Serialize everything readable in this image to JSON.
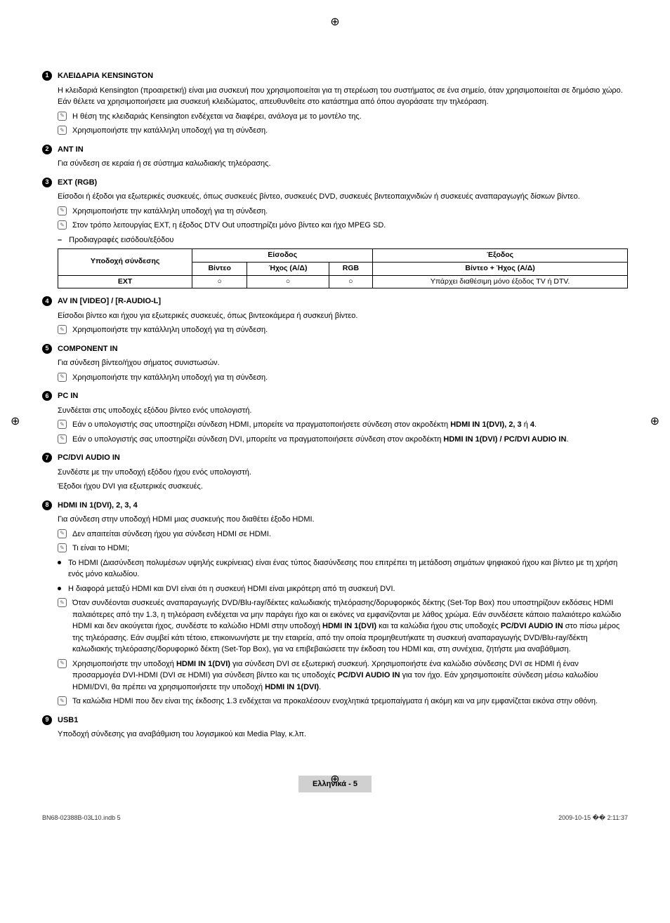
{
  "sections": [
    {
      "num": "1",
      "title": "ΚΛΕΙΔΑΡΙΑ KENSINGTON",
      "intro": "Η κλειδαριά Kensington (προαιρετική) είναι μια συσκευή που χρησιμοποιείται για τη στερέωση του συστήματος σε ένα σημείο, όταν χρησιμοποιείται σε δημόσιο χώρο. Εάν θέλετε να χρησιμοποιήσετε μια συσκευή κλειδώματος, απευθυνθείτε στο κατάστημα από όπου αγοράσατε την τηλεόραση.",
      "notes": [
        "Η θέση της κλειδαριάς Kensington ενδέχεται να διαφέρει, ανάλογα με το μοντέλο της.",
        "Χρησιμοποιήστε την κατάλληλη υποδοχή για τη σύνδεση."
      ]
    },
    {
      "num": "2",
      "title": "ANT IN",
      "intro": "Για σύνδεση σε κεραία ή σε σύστημα καλωδιακής τηλεόρασης."
    },
    {
      "num": "3",
      "title": "EXT (RGB)",
      "intro": "Είσοδοι ή έξοδοι για εξωτερικές συσκευές, όπως συσκευές βίντεο, συσκευές DVD, συσκευές βιντεοπαιχνιδιών ή συσκευές αναπαραγωγής δίσκων βίντεο.",
      "notes": [
        "Χρησιμοποιήστε την κατάλληλη υποδοχή για τη σύνδεση.",
        "Στον τρόπο λειτουργίας EXT, η έξοδος DTV Out υποστηρίζει μόνο βίντεο και ήχο MPEG SD."
      ],
      "dash": "Προδιαγραφές εισόδου/εξόδου"
    },
    {
      "num": "4",
      "title": "AV IN [VIDEO] / [R-AUDIO-L]",
      "intro": "Είσοδοι βίντεο και ήχου για εξωτερικές συσκευές, όπως βιντεοκάμερα ή συσκευή βίντεο.",
      "notes": [
        "Χρησιμοποιήστε την κατάλληλη υποδοχή για τη σύνδεση."
      ]
    },
    {
      "num": "5",
      "title": "COMPONENT IN",
      "intro": "Για σύνδεση βίντεο/ήχου σήματος συνιστωσών.",
      "notes": [
        "Χρησιμοποιήστε την κατάλληλη υποδοχή για τη σύνδεση."
      ]
    },
    {
      "num": "6",
      "title": "PC IN",
      "intro": "Συνδέεται στις υποδοχές εξόδου βίντεο ενός υπολογιστή."
    },
    {
      "num": "7",
      "title": "PC/DVI AUDIO IN",
      "intro": "Συνδέστε με την υποδοχή εξόδου ήχου ενός υπολογιστή.",
      "intro2": "Έξοδοι ήχου DVI για εξωτερικές συσκευές."
    },
    {
      "num": "8",
      "title": "HDMI IN 1(DVI), 2, 3, 4",
      "intro": "Για σύνδεση στην υποδοχή HDMI μιας συσκευής που διαθέτει έξοδο HDMI."
    },
    {
      "num": "9",
      "title": "USB1",
      "intro": "Υποδοχή σύνδεσης για αναβάθμιση του λογισμικού και Media Play, κ.λπ."
    }
  ],
  "pc_notes": {
    "n1a": "Εάν ο υπολογιστής σας υποστηρίζει σύνδεση HDMI, μπορείτε να πραγματοποιήσετε σύνδεση στον ακροδέκτη ",
    "n1b": "HDMI IN 1(DVI), 2, 3",
    "n1c": " ή ",
    "n1d": "4",
    "n1e": ".",
    "n2a": "Εάν ο υπολογιστής σας υποστηρίζει σύνδεση DVI, μπορείτε να πραγματοποιήσετε σύνδεση στον ακροδέκτη ",
    "n2b": "HDMI IN 1(DVI) / PC/DVI AUDIO IN",
    "n2c": "."
  },
  "hdmi_notes": {
    "n1": "Δεν απαιτείται σύνδεση ήχου για σύνδεση HDMI σε HDMI.",
    "n2": "Τι είναι το HDMI;",
    "b1": "Το HDMI (Διασύνδεση πολυμέσων υψηλής ευκρίνειας) είναι ένας τύπος διασύνδεσης που επιτρέπει τη μετάδοση σημάτων ψηφιακού ήχου και βίντεο με τη χρήση ενός μόνο καλωδίου.",
    "b2": "Η διαφορά μεταξύ HDMI και DVI είναι ότι η συσκευή HDMI είναι μικρότερη από τη συσκευή DVI.",
    "n3a": "Όταν συνδέονται συσκευές αναπαραγωγής DVD/Blu-ray/δέκτες καλωδιακής τηλεόρασης/δορυφορικός δέκτης (Set-Top Box) που υποστηρίζουν εκδόσεις HDMI παλαιότερες από την 1.3, η τηλεόραση ενδέχεται να μην παράγει ήχο και οι εικόνες να εμφανίζονται με λάθος χρώμα. Εάν συνδέσετε κάποιο παλαιότερο καλώδιο HDMI και δεν ακούγεται ήχος, συνδέστε το καλώδιο HDMI στην υποδοχή ",
    "n3b": "HDMI IN 1(DVI)",
    "n3c": " και τα καλώδια ήχου στις υποδοχές ",
    "n3d": "PC/DVI AUDIO IN",
    "n3e": " στο πίσω μέρος της τηλεόρασης. Εάν συμβεί κάτι τέτοιο, επικοινωνήστε με την εταιρεία, από την οποία προμηθευτήκατε τη συσκευή αναπαραγωγής DVD/Blu-ray/δέκτη καλωδιακής τηλεόρασης/δορυφορικό δέκτη (Set-Top Box), για να επιβεβαιώσετε την έκδοση του HDMI και, στη συνέχεια, ζητήστε μια αναβάθμιση.",
    "n4a": "Χρησιμοποιήστε την υποδοχή ",
    "n4b": "HDMI IN 1(DVI)",
    "n4c": " για σύνδεση DVI σε εξωτερική συσκευή. Χρησιμοποιήστε ένα καλώδιο σύνδεσης DVI σε HDMI ή έναν προσαρμογέα DVI-HDMI (DVI σε HDMI) για σύνδεση βίντεο και τις υποδοχές ",
    "n4d": "PC/DVI AUDIO IN",
    "n4e": " για τον ήχο. Εάν χρησιμοποιείτε σύνδεση μέσω καλωδίου HDMI/DVI, θα πρέπει να χρησιμοποιήσετε την υποδοχή ",
    "n4f": "HDMI IN 1(DVI)",
    "n4g": ".",
    "n5": "Τα καλώδια HDMI που δεν είναι της έκδοσης 1.3 ενδέχεται να προκαλέσουν ενοχλητικά τρεμοπαίγματα ή ακόμη και να μην εμφανίζεται εικόνα στην οθόνη."
  },
  "table": {
    "h_conn": "Υποδοχή σύνδεσης",
    "h_input": "Είσοδος",
    "h_output": "Έξοδος",
    "h_video": "Βίντεο",
    "h_audio": "Ήχος (Α/Δ)",
    "h_rgb": "RGB",
    "h_va": "Βίντεο + Ήχος (Α/Δ)",
    "r1": "EXT",
    "r1_v": "○",
    "r1_a": "○",
    "r1_r": "○",
    "r1_o": "Υπάρχει διαθέσιμη μόνο έξοδος TV ή DTV."
  },
  "footer": {
    "page_label": "Ελληνικά - 5",
    "doc_id": "BN68-02388B-03L10.indb   5",
    "timestamp": "2009-10-15   �� 2:11:37"
  }
}
